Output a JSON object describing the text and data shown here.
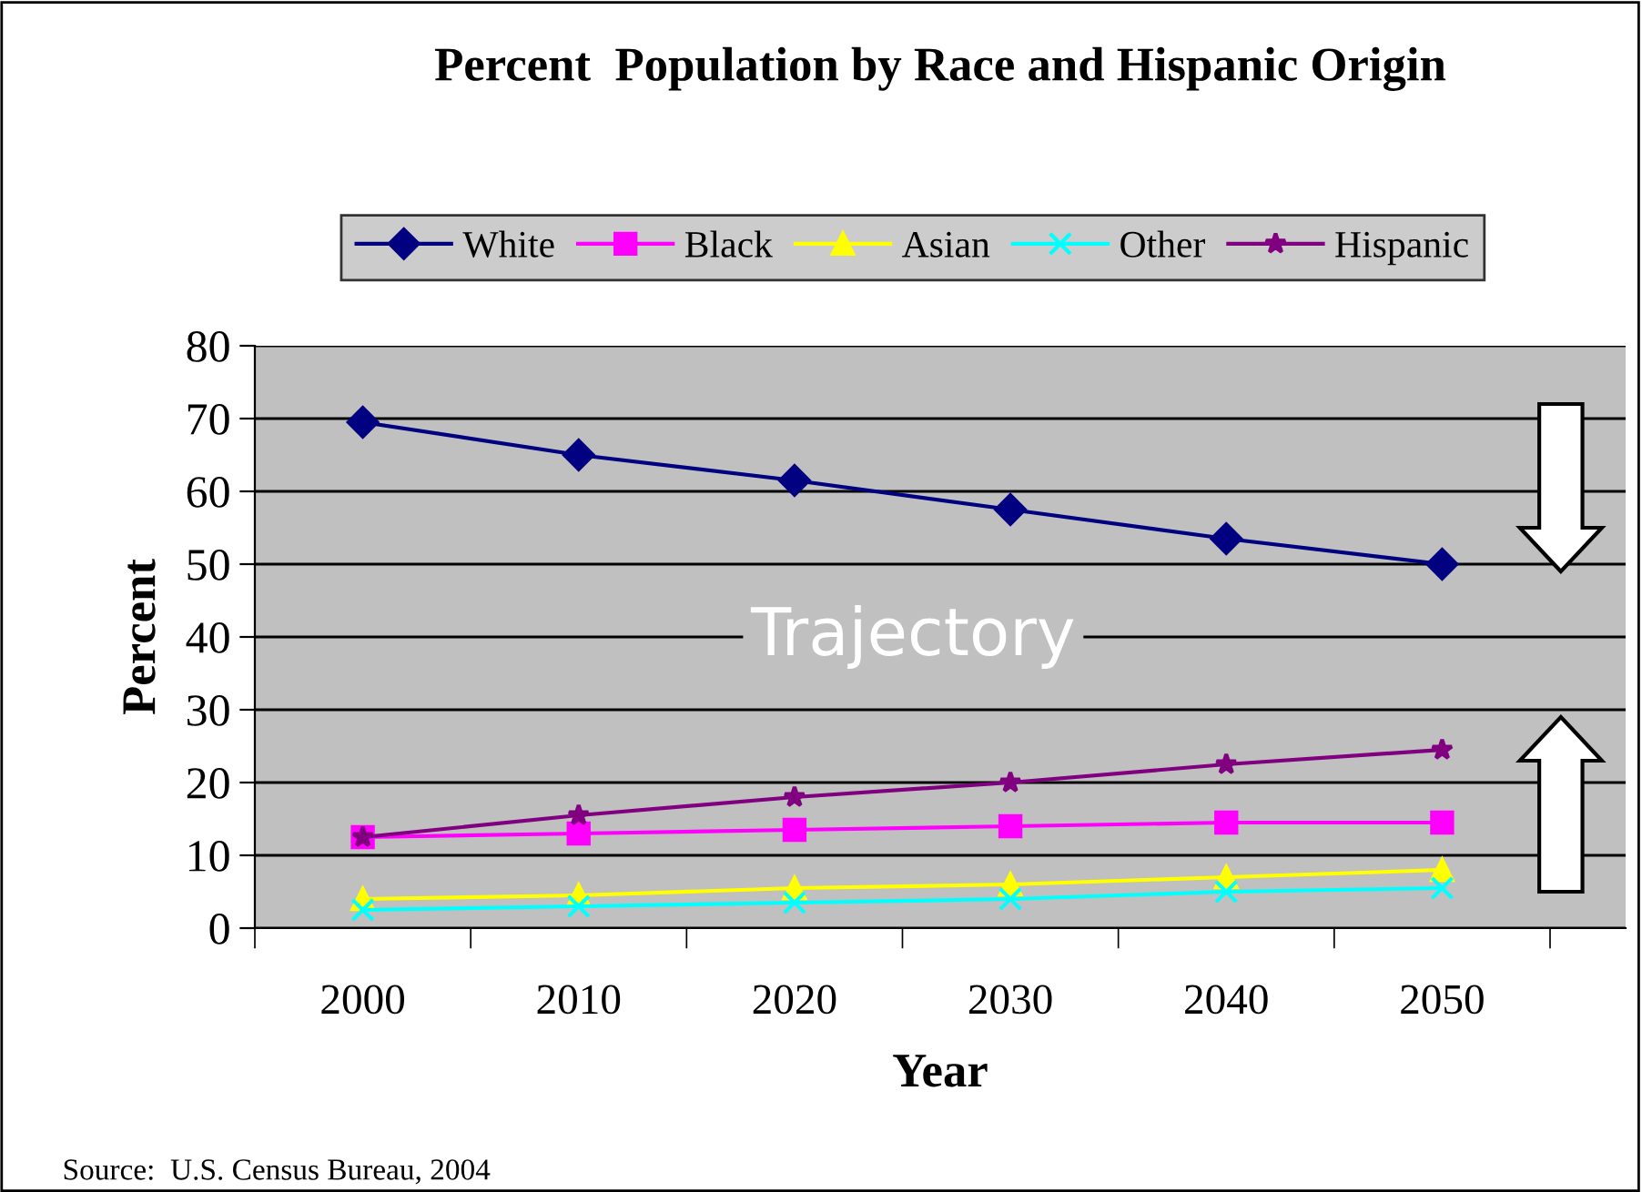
{
  "chart_data": {
    "type": "line",
    "title": "Percent  Population by Race and Hispanic Origin",
    "xlabel": "Year",
    "ylabel": "Percent",
    "categories": [
      "2000",
      "2010",
      "2020",
      "2030",
      "2040",
      "2050"
    ],
    "series": [
      {
        "name": "White",
        "color": "#000080",
        "marker": "diamond",
        "values": [
          69.5,
          65,
          61.5,
          57.5,
          53.5,
          50
        ]
      },
      {
        "name": "Black",
        "color": "#ff00ff",
        "marker": "square",
        "values": [
          12.5,
          13,
          13.5,
          14,
          14.5,
          14.5
        ]
      },
      {
        "name": "Asian",
        "color": "#ffff00",
        "marker": "triangle",
        "values": [
          4,
          4.5,
          5.5,
          6,
          7,
          8
        ]
      },
      {
        "name": "Other",
        "color": "#00ffff",
        "marker": "cross",
        "values": [
          2.5,
          3,
          3.5,
          4,
          5,
          5.5
        ]
      },
      {
        "name": "Hispanic",
        "color": "#800080",
        "marker": "star",
        "values": [
          12.5,
          15.5,
          18,
          20,
          22.5,
          24.5
        ]
      }
    ],
    "ylim": [
      0,
      80
    ],
    "yticks": [
      0,
      10,
      20,
      30,
      40,
      50,
      60,
      70,
      80
    ],
    "grid": "y",
    "legend": "top",
    "annotations": [
      "Trajectory",
      "Source:  U.S. Census Bureau, 2004"
    ]
  }
}
